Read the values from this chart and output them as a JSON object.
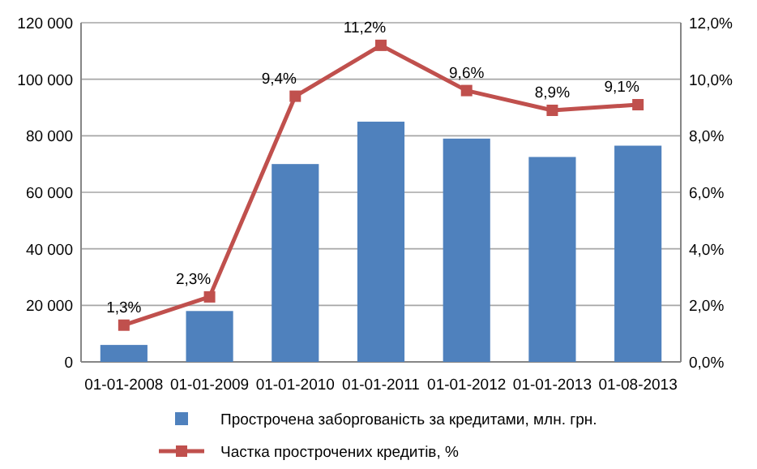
{
  "chart_data": {
    "type": "bar",
    "categories": [
      "01-01-2008",
      "01-01-2009",
      "01-01-2010",
      "01-01-2011",
      "01-01-2012",
      "01-01-2013",
      "01-08-2013"
    ],
    "series": [
      {
        "name": "Прострочена заборгованість за кредитами, млн. грн.",
        "color": "#4f81bd",
        "values": [
          6000,
          18000,
          70000,
          85000,
          79000,
          72500,
          76500
        ]
      },
      {
        "name": "Частка прострочених кредитів, %",
        "type": "line",
        "axis": "y2",
        "color": "#c0504d",
        "marker": "square",
        "values": [
          1.3,
          2.3,
          9.4,
          11.2,
          9.6,
          8.9,
          9.1
        ],
        "value_labels": [
          "1,3%",
          "2,3%",
          "9,4%",
          "11,2%",
          "9,6%",
          "8,9%",
          "9,1%"
        ]
      }
    ],
    "ylim": [
      0,
      120000
    ],
    "yticks": [
      {
        "value": 0,
        "label": "0"
      },
      {
        "value": 20000,
        "label": "20 000"
      },
      {
        "value": 40000,
        "label": "40 000"
      },
      {
        "value": 60000,
        "label": "60 000"
      },
      {
        "value": 80000,
        "label": "80 000"
      },
      {
        "value": 100000,
        "label": "100 000"
      },
      {
        "value": 120000,
        "label": "120 000"
      }
    ],
    "y2lim": [
      0,
      12
    ],
    "y2ticks": [
      {
        "value": 0,
        "label": "0,0%"
      },
      {
        "value": 2,
        "label": "2,0%"
      },
      {
        "value": 4,
        "label": "4,0%"
      },
      {
        "value": 6,
        "label": "6,0%"
      },
      {
        "value": 8,
        "label": "8,0%"
      },
      {
        "value": 10,
        "label": "10,0%"
      },
      {
        "value": 12,
        "label": "12,0%"
      }
    ],
    "grid": "y",
    "legend": "bottom"
  }
}
